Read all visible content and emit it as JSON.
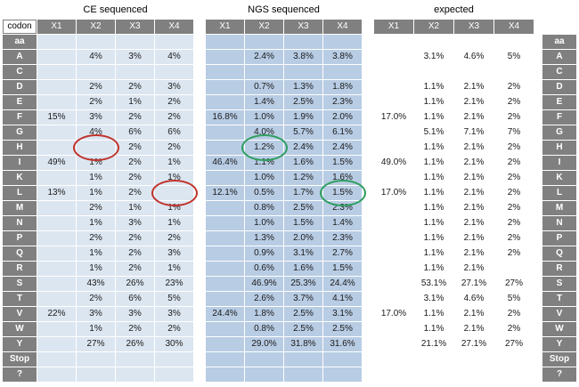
{
  "labels": {
    "corner": "codon",
    "aa": "aa"
  },
  "colors": {
    "label_fill": "#808080",
    "label_text": "#ffffff",
    "ce_fill": "#dce6f1",
    "ngs_fill": "#b8cce4",
    "expected_fill": "#ffffff",
    "value_text": "#1a1a1a",
    "highlight_red": "#c0342c",
    "highlight_green": "#2e9e5e"
  },
  "chart_data": {
    "type": "table",
    "column_headers": [
      "X1",
      "X2",
      "X3",
      "X4"
    ],
    "row_labels": [
      "A",
      "C",
      "D",
      "E",
      "F",
      "G",
      "H",
      "I",
      "K",
      "L",
      "M",
      "N",
      "P",
      "Q",
      "R",
      "S",
      "T",
      "V",
      "W",
      "Y",
      "Stop",
      "?"
    ],
    "groups": [
      {
        "id": "ce",
        "title": "CE sequenced",
        "values": [
          [
            "",
            "4%",
            "3%",
            "4%"
          ],
          [
            "",
            "",
            "",
            ""
          ],
          [
            "",
            "2%",
            "2%",
            "3%"
          ],
          [
            "",
            "2%",
            "1%",
            "2%"
          ],
          [
            "15%",
            "3%",
            "2%",
            "2%"
          ],
          [
            "",
            "4%",
            "6%",
            "6%"
          ],
          [
            "",
            "",
            "2%",
            "2%"
          ],
          [
            "49%",
            "1%",
            "2%",
            "1%"
          ],
          [
            "",
            "1%",
            "2%",
            "1%"
          ],
          [
            "13%",
            "1%",
            "2%",
            ""
          ],
          [
            "",
            "2%",
            "1%",
            "1%"
          ],
          [
            "",
            "1%",
            "3%",
            "1%"
          ],
          [
            "",
            "2%",
            "2%",
            "2%"
          ],
          [
            "",
            "1%",
            "2%",
            "3%"
          ],
          [
            "",
            "1%",
            "2%",
            "1%"
          ],
          [
            "",
            "43%",
            "26%",
            "23%"
          ],
          [
            "",
            "2%",
            "6%",
            "5%"
          ],
          [
            "22%",
            "3%",
            "3%",
            "3%"
          ],
          [
            "",
            "1%",
            "2%",
            "2%"
          ],
          [
            "",
            "27%",
            "26%",
            "30%"
          ],
          [
            "",
            "",
            "",
            ""
          ],
          [
            "",
            "",
            "",
            ""
          ]
        ]
      },
      {
        "id": "ngs",
        "title": "NGS sequenced",
        "values": [
          [
            "",
            "2.4%",
            "3.8%",
            "3.8%"
          ],
          [
            "",
            "",
            "",
            ""
          ],
          [
            "",
            "0.7%",
            "1.3%",
            "1.8%"
          ],
          [
            "",
            "1.4%",
            "2.5%",
            "2.3%"
          ],
          [
            "16.8%",
            "1.0%",
            "1.9%",
            "2.0%"
          ],
          [
            "",
            "4.0%",
            "5.7%",
            "6.1%"
          ],
          [
            "",
            "1.2%",
            "2.4%",
            "2.4%"
          ],
          [
            "46.4%",
            "1.1%",
            "1.6%",
            "1.5%"
          ],
          [
            "",
            "1.0%",
            "1.2%",
            "1.6%"
          ],
          [
            "12.1%",
            "0.5%",
            "1.7%",
            "1.5%"
          ],
          [
            "",
            "0.8%",
            "2.5%",
            "2.3%"
          ],
          [
            "",
            "1.0%",
            "1.5%",
            "1.4%"
          ],
          [
            "",
            "1.3%",
            "2.0%",
            "2.3%"
          ],
          [
            "",
            "0.9%",
            "3.1%",
            "2.7%"
          ],
          [
            "",
            "0.6%",
            "1.6%",
            "1.5%"
          ],
          [
            "",
            "46.9%",
            "25.3%",
            "24.4%"
          ],
          [
            "",
            "2.6%",
            "3.7%",
            "4.1%"
          ],
          [
            "24.4%",
            "1.8%",
            "2.5%",
            "3.1%"
          ],
          [
            "",
            "0.8%",
            "2.5%",
            "2.5%"
          ],
          [
            "",
            "29.0%",
            "31.8%",
            "31.6%"
          ],
          [
            "",
            "",
            "",
            ""
          ],
          [
            "",
            "",
            "",
            ""
          ]
        ]
      },
      {
        "id": "expected",
        "title": "expected",
        "values": [
          [
            "",
            "3.1%",
            "4.6%",
            "5%"
          ],
          [
            "",
            "",
            "",
            ""
          ],
          [
            "",
            "1.1%",
            "2.1%",
            "2%"
          ],
          [
            "",
            "1.1%",
            "2.1%",
            "2%"
          ],
          [
            "17.0%",
            "1.1%",
            "2.1%",
            "2%"
          ],
          [
            "",
            "5.1%",
            "7.1%",
            "7%"
          ],
          [
            "",
            "1.1%",
            "2.1%",
            "2%"
          ],
          [
            "49.0%",
            "1.1%",
            "2.1%",
            "2%"
          ],
          [
            "",
            "1.1%",
            "2.1%",
            "2%"
          ],
          [
            "17.0%",
            "1.1%",
            "2.1%",
            "2%"
          ],
          [
            "",
            "1.1%",
            "2.1%",
            "2%"
          ],
          [
            "",
            "1.1%",
            "2.1%",
            "2%"
          ],
          [
            "",
            "1.1%",
            "2.1%",
            "2%"
          ],
          [
            "",
            "1.1%",
            "2.1%",
            "2%"
          ],
          [
            "",
            "1.1%",
            "2.1%",
            ""
          ],
          [
            "",
            "53.1%",
            "27.1%",
            "27%"
          ],
          [
            "",
            "3.1%",
            "4.6%",
            "5%"
          ],
          [
            "17.0%",
            "1.1%",
            "2.1%",
            "2%"
          ],
          [
            "",
            "1.1%",
            "2.1%",
            "2%"
          ],
          [
            "",
            "21.1%",
            "27.1%",
            "27%"
          ],
          [
            "",
            "",
            "",
            ""
          ],
          [
            "",
            "",
            "",
            ""
          ]
        ]
      }
    ],
    "annotations": [
      {
        "shape": "ellipse",
        "color": "red",
        "group": "CE sequenced",
        "row": "H",
        "column": "X2"
      },
      {
        "shape": "ellipse",
        "color": "red",
        "group": "CE sequenced",
        "row": "L",
        "column": "X4"
      },
      {
        "shape": "ellipse",
        "color": "green",
        "group": "NGS sequenced",
        "row": "H",
        "column": "X2"
      },
      {
        "shape": "ellipse",
        "color": "green",
        "group": "NGS sequenced",
        "row": "L",
        "column": "X4"
      }
    ]
  }
}
